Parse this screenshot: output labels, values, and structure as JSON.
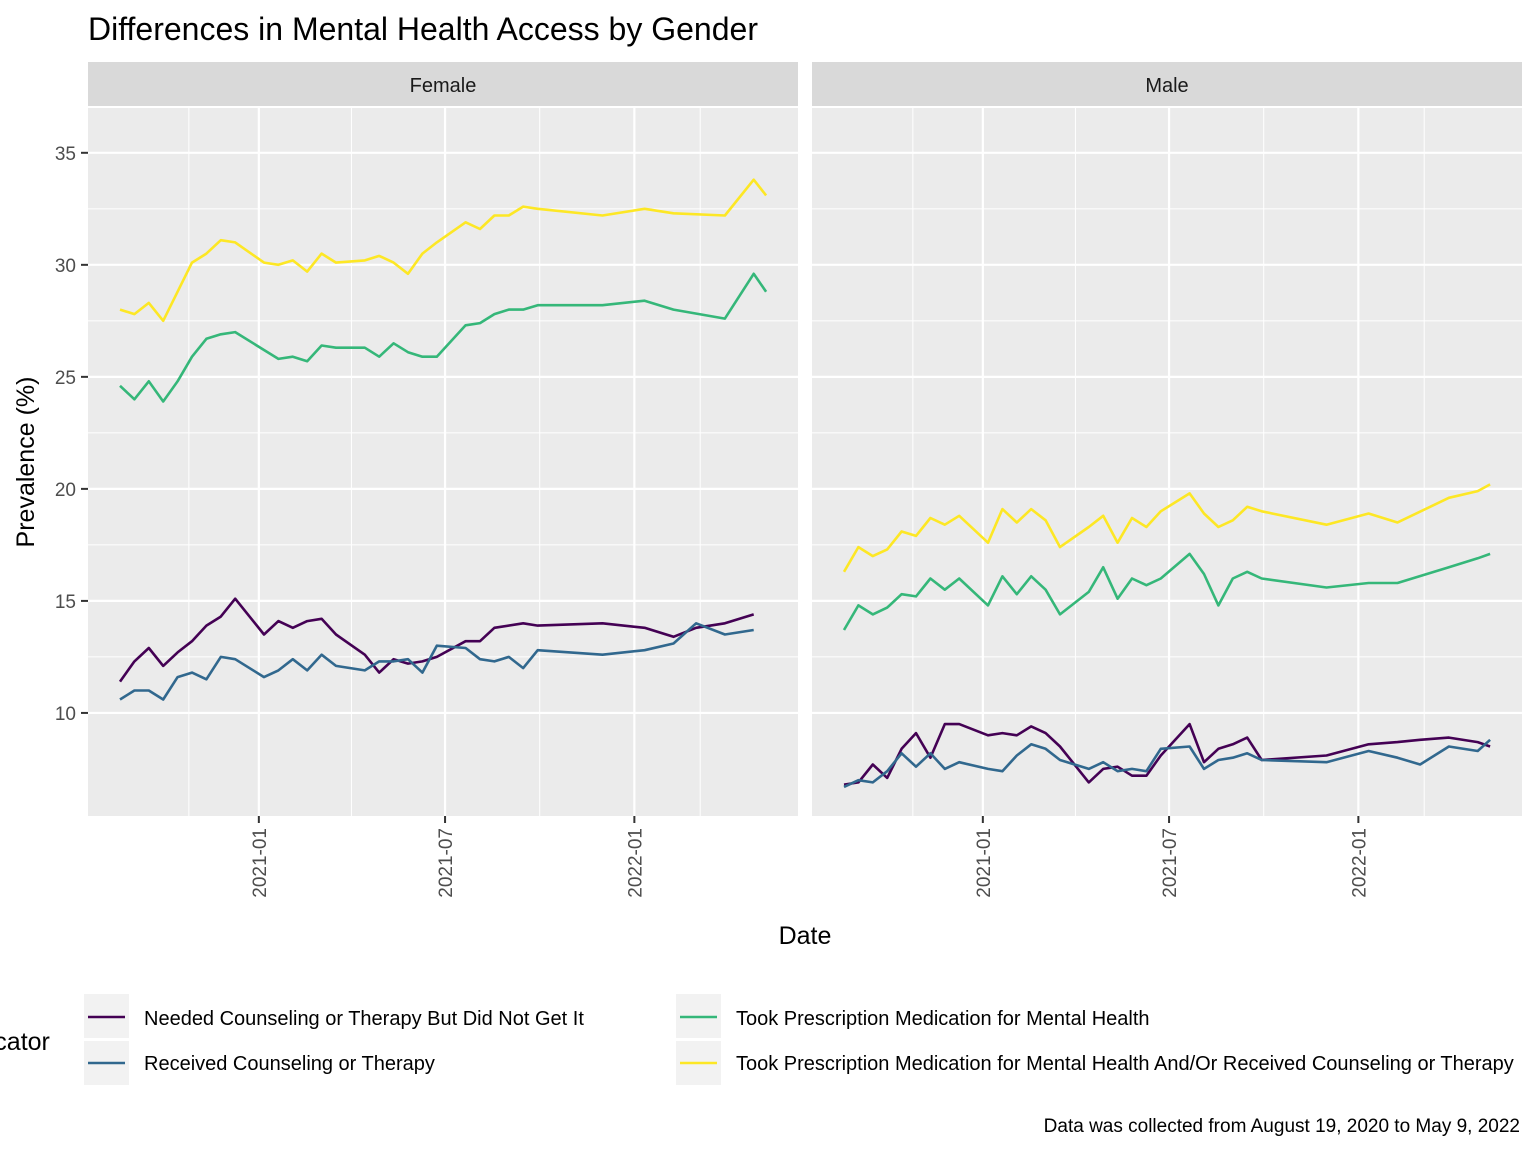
{
  "title": "Differences in Mental Health Access by Gender",
  "caption": "Data was collected from August 19, 2020 to May 9, 2022",
  "legend_title": "Indicator",
  "chart_data": {
    "type": "line",
    "xlabel": "Date",
    "ylabel": "Prevalence (%)",
    "x_range": [
      "2020-08-19",
      "2022-05-09"
    ],
    "ylim": [
      5.4,
      37
    ],
    "y_ticks": [
      10,
      15,
      20,
      25,
      30,
      35
    ],
    "x_ticks": [
      "2021-01",
      "2021-07",
      "2022-01"
    ],
    "grid": true,
    "legend_position": "bottom",
    "series_meta": [
      {
        "name": "Needed Counseling or Therapy But Did Not Get It",
        "color": "#440154"
      },
      {
        "name": "Received Counseling or Therapy",
        "color": "#31688E"
      },
      {
        "name": "Took Prescription Medication for Mental Health",
        "color": "#35B779"
      },
      {
        "name": "Took Prescription Medication for Mental Health And/Or Received Counseling or Therapy",
        "color": "#FDE725"
      }
    ],
    "panels": [
      {
        "label": "Female",
        "series": [
          {
            "name": "Needed Counseling or Therapy But Did Not Get It",
            "x": [
              "2020-08-19",
              "2020-09-02",
              "2020-09-16",
              "2020-09-30",
              "2020-10-14",
              "2020-10-28",
              "2020-11-11",
              "2020-11-25",
              "2020-12-09",
              "2021-01-06",
              "2021-01-20",
              "2021-02-03",
              "2021-02-17",
              "2021-03-03",
              "2021-03-17",
              "2021-04-14",
              "2021-04-28",
              "2021-05-12",
              "2021-05-26",
              "2021-06-09",
              "2021-06-23",
              "2021-07-21",
              "2021-08-04",
              "2021-08-18",
              "2021-09-15",
              "2021-09-29",
              "2021-12-01",
              "2022-01-11",
              "2022-02-08",
              "2022-03-02",
              "2022-03-30",
              "2022-04-27"
            ],
            "values": [
              11.4,
              12.3,
              12.9,
              12.1,
              12.7,
              13.2,
              13.9,
              14.3,
              15.1,
              13.5,
              14.1,
              13.8,
              14.1,
              14.2,
              13.5,
              12.6,
              11.8,
              12.4,
              12.2,
              12.3,
              12.5,
              13.2,
              13.2,
              13.8,
              14.0,
              13.9,
              14.0,
              13.8,
              13.4,
              13.8,
              14.0,
              14.4
            ]
          },
          {
            "name": "Received Counseling or Therapy",
            "x": [
              "2020-08-19",
              "2020-09-02",
              "2020-09-16",
              "2020-09-30",
              "2020-10-14",
              "2020-10-28",
              "2020-11-11",
              "2020-11-25",
              "2020-12-09",
              "2021-01-06",
              "2021-01-20",
              "2021-02-03",
              "2021-02-17",
              "2021-03-03",
              "2021-03-17",
              "2021-04-14",
              "2021-04-28",
              "2021-05-12",
              "2021-05-26",
              "2021-06-09",
              "2021-06-23",
              "2021-07-21",
              "2021-08-04",
              "2021-08-18",
              "2021-09-01",
              "2021-09-15",
              "2021-09-29",
              "2021-12-01",
              "2022-01-11",
              "2022-02-08",
              "2022-03-02",
              "2022-03-30",
              "2022-04-27"
            ],
            "values": [
              10.6,
              11.0,
              11.0,
              10.6,
              11.6,
              11.8,
              11.5,
              12.5,
              12.4,
              11.6,
              11.9,
              12.4,
              11.9,
              12.6,
              12.1,
              11.9,
              12.3,
              12.3,
              12.4,
              11.8,
              13.0,
              12.9,
              12.4,
              12.3,
              12.5,
              12.0,
              12.8,
              12.6,
              12.8,
              13.1,
              14.0,
              13.5,
              13.7
            ]
          },
          {
            "name": "Took Prescription Medication for Mental Health",
            "x": [
              "2020-08-19",
              "2020-09-02",
              "2020-09-16",
              "2020-09-30",
              "2020-10-14",
              "2020-10-28",
              "2020-11-11",
              "2020-11-25",
              "2020-12-09",
              "2021-01-06",
              "2021-01-20",
              "2021-02-03",
              "2021-02-17",
              "2021-03-03",
              "2021-03-17",
              "2021-04-14",
              "2021-04-28",
              "2021-05-12",
              "2021-05-26",
              "2021-06-09",
              "2021-06-23",
              "2021-07-21",
              "2021-08-04",
              "2021-08-18",
              "2021-09-01",
              "2021-09-15",
              "2021-09-29",
              "2021-12-01",
              "2022-01-11",
              "2022-02-08",
              "2022-03-30",
              "2022-04-27",
              "2022-05-09"
            ],
            "values": [
              24.6,
              24.0,
              24.8,
              23.9,
              24.8,
              25.9,
              26.7,
              26.9,
              27.0,
              26.2,
              25.8,
              25.9,
              25.7,
              26.4,
              26.3,
              26.3,
              25.9,
              26.5,
              26.1,
              25.9,
              25.9,
              27.3,
              27.4,
              27.8,
              28.0,
              28.0,
              28.2,
              28.2,
              28.4,
              28.0,
              27.6,
              29.6,
              28.8
            ]
          },
          {
            "name": "Took Prescription Medication for Mental Health And/Or Received Counseling or Therapy",
            "x": [
              "2020-08-19",
              "2020-09-02",
              "2020-09-16",
              "2020-09-30",
              "2020-10-14",
              "2020-10-28",
              "2020-11-11",
              "2020-11-25",
              "2020-12-09",
              "2021-01-06",
              "2021-01-20",
              "2021-02-03",
              "2021-02-17",
              "2021-03-03",
              "2021-03-17",
              "2021-04-14",
              "2021-04-28",
              "2021-05-12",
              "2021-05-26",
              "2021-06-09",
              "2021-06-23",
              "2021-07-21",
              "2021-08-04",
              "2021-08-18",
              "2021-09-01",
              "2021-09-15",
              "2021-09-29",
              "2021-12-01",
              "2022-01-11",
              "2022-02-08",
              "2022-03-30",
              "2022-04-27",
              "2022-05-09"
            ],
            "values": [
              28.0,
              27.8,
              28.3,
              27.5,
              28.8,
              30.1,
              30.5,
              31.1,
              31.0,
              30.1,
              30.0,
              30.2,
              29.7,
              30.5,
              30.1,
              30.2,
              30.4,
              30.1,
              29.6,
              30.5,
              31.0,
              31.9,
              31.6,
              32.2,
              32.2,
              32.6,
              32.5,
              32.2,
              32.5,
              32.3,
              32.2,
              33.8,
              33.1
            ]
          }
        ]
      },
      {
        "label": "Male",
        "series": [
          {
            "name": "Needed Counseling or Therapy But Did Not Get It",
            "x": [
              "2020-08-19",
              "2020-09-02",
              "2020-09-16",
              "2020-09-30",
              "2020-10-14",
              "2020-10-28",
              "2020-11-11",
              "2020-11-25",
              "2020-12-09",
              "2021-01-06",
              "2021-01-20",
              "2021-02-03",
              "2021-02-17",
              "2021-03-03",
              "2021-03-17",
              "2021-04-14",
              "2021-04-28",
              "2021-05-12",
              "2021-05-26",
              "2021-06-09",
              "2021-06-23",
              "2021-07-21",
              "2021-08-04",
              "2021-08-18",
              "2021-09-01",
              "2021-09-15",
              "2021-09-29",
              "2021-12-01",
              "2022-01-11",
              "2022-02-08",
              "2022-03-02",
              "2022-03-30",
              "2022-04-27",
              "2022-05-09"
            ],
            "values": [
              6.8,
              6.9,
              7.7,
              7.1,
              8.4,
              9.1,
              8.0,
              9.5,
              9.5,
              9.0,
              9.1,
              9.0,
              9.4,
              9.1,
              8.5,
              6.9,
              7.5,
              7.6,
              7.2,
              7.2,
              8.1,
              9.5,
              7.8,
              8.4,
              8.6,
              8.9,
              7.9,
              8.1,
              8.6,
              8.7,
              8.8,
              8.9,
              8.7,
              8.5
            ]
          },
          {
            "name": "Received Counseling or Therapy",
            "x": [
              "2020-08-19",
              "2020-09-02",
              "2020-09-16",
              "2020-09-30",
              "2020-10-14",
              "2020-10-28",
              "2020-11-11",
              "2020-11-25",
              "2020-12-09",
              "2021-01-06",
              "2021-01-20",
              "2021-02-03",
              "2021-02-17",
              "2021-03-03",
              "2021-03-17",
              "2021-04-14",
              "2021-04-28",
              "2021-05-12",
              "2021-05-26",
              "2021-06-09",
              "2021-06-23",
              "2021-07-21",
              "2021-08-04",
              "2021-08-18",
              "2021-09-01",
              "2021-09-15",
              "2021-09-29",
              "2021-12-01",
              "2022-01-11",
              "2022-02-08",
              "2022-03-02",
              "2022-03-30",
              "2022-04-27",
              "2022-05-09"
            ],
            "values": [
              6.7,
              7.0,
              6.9,
              7.4,
              8.2,
              7.6,
              8.2,
              7.5,
              7.8,
              7.5,
              7.4,
              8.1,
              8.6,
              8.4,
              7.9,
              7.5,
              7.8,
              7.4,
              7.5,
              7.4,
              8.4,
              8.5,
              7.5,
              7.9,
              8.0,
              8.2,
              7.9,
              7.8,
              8.3,
              8.0,
              7.7,
              8.5,
              8.3,
              8.8
            ]
          },
          {
            "name": "Took Prescription Medication for Mental Health",
            "x": [
              "2020-08-19",
              "2020-09-02",
              "2020-09-16",
              "2020-09-30",
              "2020-10-14",
              "2020-10-28",
              "2020-11-11",
              "2020-11-25",
              "2020-12-09",
              "2021-01-06",
              "2021-01-20",
              "2021-02-03",
              "2021-02-17",
              "2021-03-03",
              "2021-03-17",
              "2021-04-14",
              "2021-04-28",
              "2021-05-12",
              "2021-05-26",
              "2021-06-09",
              "2021-06-23",
              "2021-07-21",
              "2021-08-04",
              "2021-08-18",
              "2021-09-01",
              "2021-09-15",
              "2021-09-29",
              "2021-12-01",
              "2022-01-11",
              "2022-02-08",
              "2022-03-30",
              "2022-04-27",
              "2022-05-09"
            ],
            "values": [
              13.7,
              14.8,
              14.4,
              14.7,
              15.3,
              15.2,
              16.0,
              15.5,
              16.0,
              14.8,
              16.1,
              15.3,
              16.1,
              15.5,
              14.4,
              15.4,
              16.5,
              15.1,
              16.0,
              15.7,
              16.0,
              17.1,
              16.2,
              14.8,
              16.0,
              16.3,
              16.0,
              15.6,
              15.8,
              15.8,
              16.5,
              16.9,
              17.1
            ]
          },
          {
            "name": "Took Prescription Medication for Mental Health And/Or Received Counseling or Therapy",
            "x": [
              "2020-08-19",
              "2020-09-02",
              "2020-09-16",
              "2020-09-30",
              "2020-10-14",
              "2020-10-28",
              "2020-11-11",
              "2020-11-25",
              "2020-12-09",
              "2021-01-06",
              "2021-01-20",
              "2021-02-03",
              "2021-02-17",
              "2021-03-03",
              "2021-03-17",
              "2021-04-14",
              "2021-04-28",
              "2021-05-12",
              "2021-05-26",
              "2021-06-09",
              "2021-06-23",
              "2021-07-21",
              "2021-08-04",
              "2021-08-18",
              "2021-09-01",
              "2021-09-15",
              "2021-09-29",
              "2021-12-01",
              "2022-01-11",
              "2022-02-08",
              "2022-03-30",
              "2022-04-27",
              "2022-05-09"
            ],
            "values": [
              16.3,
              17.4,
              17.0,
              17.3,
              18.1,
              17.9,
              18.7,
              18.4,
              18.8,
              17.6,
              19.1,
              18.5,
              19.1,
              18.6,
              17.4,
              18.3,
              18.8,
              17.6,
              18.7,
              18.3,
              19.0,
              19.8,
              18.9,
              18.3,
              18.6,
              19.2,
              19.0,
              18.4,
              18.9,
              18.5,
              19.6,
              19.9,
              20.2
            ]
          }
        ]
      }
    ]
  }
}
